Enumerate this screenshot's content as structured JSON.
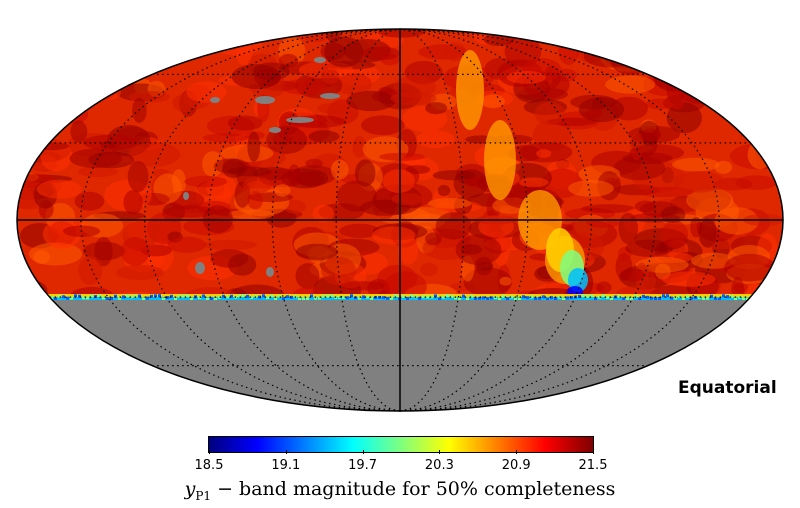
{
  "map": {
    "projection_label": "Equatorial",
    "colormap": [
      "#00007f",
      "#0000ff",
      "#007fff",
      "#00ffff",
      "#7fff7f",
      "#ffff00",
      "#ff7f00",
      "#ff0000",
      "#7f0000"
    ],
    "no_data_color": "#808080",
    "graticule_color": "#000000"
  },
  "colorbar": {
    "ticks": [
      "18.5",
      "19.1",
      "19.7",
      "20.3",
      "20.9",
      "21.5"
    ],
    "label_var": "y",
    "label_sub": "P1",
    "label_rest": " − band magnitude for 50% completeness"
  }
}
